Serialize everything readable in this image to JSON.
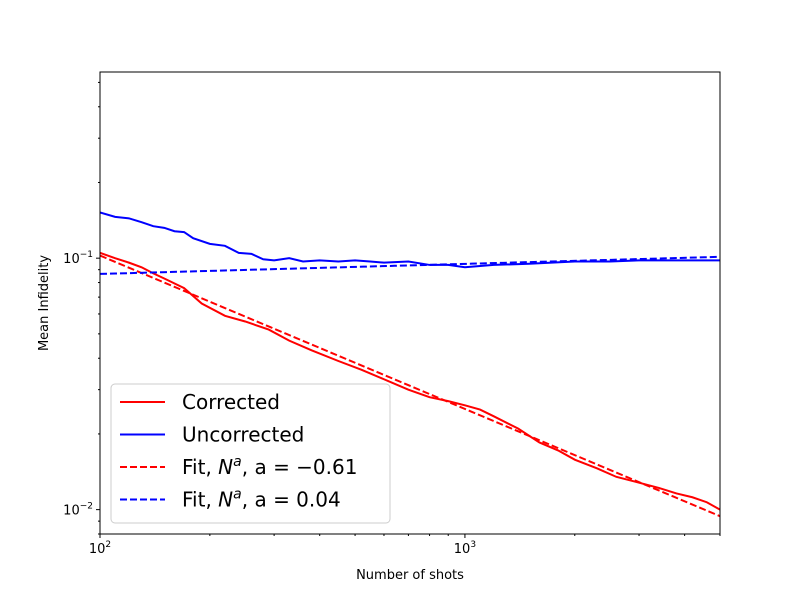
{
  "chart_data": {
    "type": "line",
    "xlabel": "Number of shots",
    "ylabel": "Mean Infidelity",
    "xscale": "log",
    "yscale": "log",
    "xlim": [
      100,
      5000
    ],
    "ylim": [
      0.008,
      0.55
    ],
    "x_major_ticks": [
      {
        "value": 100,
        "base": "10",
        "exp": "2"
      },
      {
        "value": 1000,
        "base": "10",
        "exp": "3"
      }
    ],
    "y_major_ticks": [
      {
        "value": 0.01,
        "base": "10",
        "exp": "−2"
      },
      {
        "value": 0.1,
        "base": "10",
        "exp": "−1"
      }
    ],
    "grid": false,
    "legend": {
      "placement": "lower-left"
    },
    "series": [
      {
        "name": "Corrected",
        "color": "#ff0000",
        "style": "solid",
        "x": [
          100,
          110,
          120,
          130,
          140,
          150,
          170,
          190,
          220,
          250,
          290,
          330,
          380,
          450,
          520,
          600,
          700,
          800,
          900,
          1000,
          1100,
          1200,
          1400,
          1600,
          1800,
          2000,
          2300,
          2600,
          3000,
          3400,
          3800,
          4200,
          4600,
          5000
        ],
        "y": [
          0.105,
          0.1,
          0.096,
          0.092,
          0.087,
          0.083,
          0.076,
          0.066,
          0.059,
          0.056,
          0.052,
          0.047,
          0.043,
          0.039,
          0.036,
          0.033,
          0.03,
          0.028,
          0.027,
          0.026,
          0.025,
          0.0235,
          0.021,
          0.0185,
          0.0172,
          0.0158,
          0.0146,
          0.0135,
          0.0128,
          0.0122,
          0.0116,
          0.0112,
          0.0107,
          0.01
        ]
      },
      {
        "name": "Uncorrected",
        "color": "#0000ff",
        "style": "solid",
        "x": [
          100,
          110,
          120,
          130,
          140,
          150,
          160,
          170,
          180,
          200,
          220,
          240,
          260,
          280,
          300,
          330,
          360,
          400,
          450,
          500,
          550,
          600,
          700,
          800,
          900,
          1000,
          1200,
          1500,
          2000,
          2500,
          3000,
          3500,
          4000,
          4500,
          5000
        ],
        "y": [
          0.152,
          0.146,
          0.144,
          0.139,
          0.134,
          0.132,
          0.128,
          0.127,
          0.12,
          0.114,
          0.112,
          0.105,
          0.104,
          0.099,
          0.098,
          0.1,
          0.097,
          0.098,
          0.097,
          0.098,
          0.097,
          0.096,
          0.097,
          0.094,
          0.094,
          0.092,
          0.094,
          0.095,
          0.097,
          0.097,
          0.098,
          0.098,
          0.098,
          0.098,
          0.098
        ]
      },
      {
        "name": "Fit, N^a, a = −0.61",
        "color": "#ff0000",
        "style": "dashed",
        "fit": {
          "A": 1.7,
          "a": -0.61
        }
      },
      {
        "name": "Fit, N^a, a = 0.04",
        "color": "#0000ff",
        "style": "dashed",
        "fit": {
          "A": 0.072,
          "a": 0.04
        }
      }
    ]
  },
  "legend_entries": [
    {
      "prefix": "Corrected",
      "base": "",
      "sup": "",
      "suffix": ""
    },
    {
      "prefix": "Uncorrected",
      "base": "",
      "sup": "",
      "suffix": ""
    },
    {
      "prefix": "Fit, ",
      "base": "N",
      "sup": "a",
      "suffix": ", a = −0.61"
    },
    {
      "prefix": "Fit, ",
      "base": "N",
      "sup": "a",
      "suffix": ", a = 0.04"
    }
  ]
}
